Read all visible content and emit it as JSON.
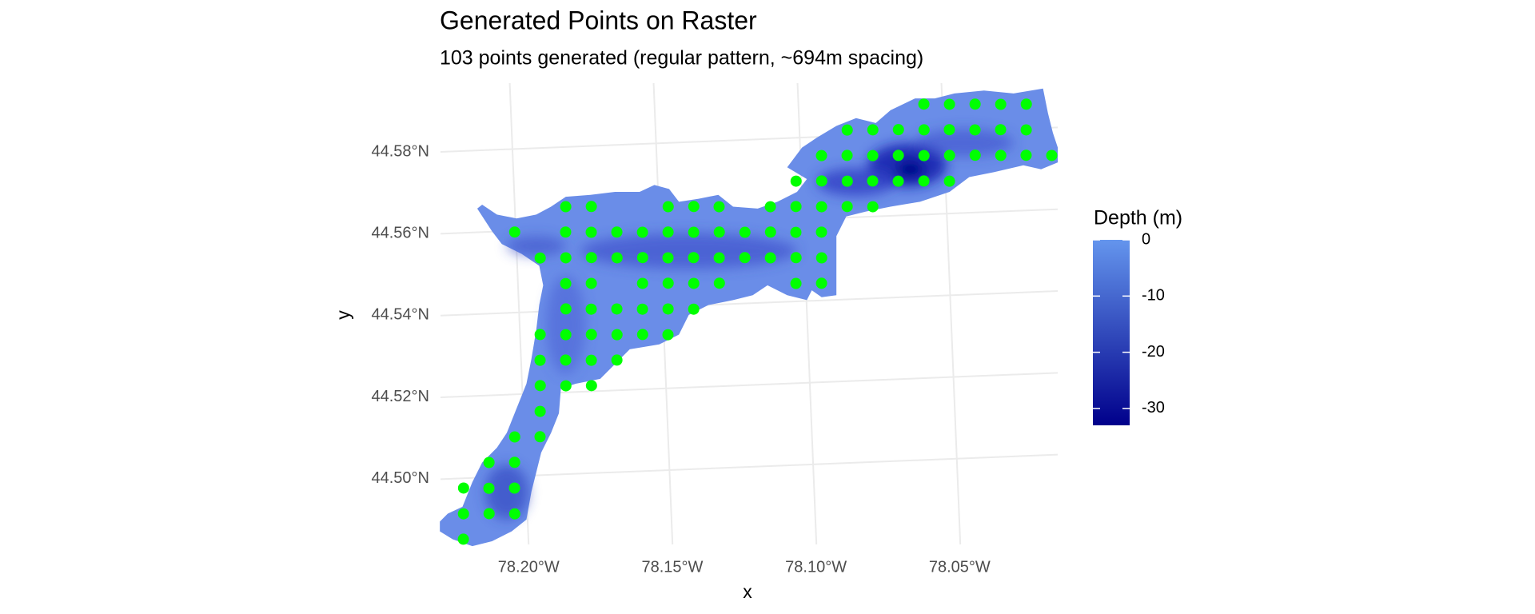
{
  "chart_data": {
    "type": "scatter",
    "title": "Generated Points on Raster",
    "subtitle": "103 points generated (regular pattern, ~694m spacing)",
    "x_label": "x",
    "y_label": "y",
    "color": "#00ff00",
    "grid": true,
    "xlim": [
      -78.225,
      -78.015
    ],
    "ylim": [
      44.483,
      44.597
    ],
    "xticks": [
      {
        "value": -78.2,
        "label": "78.20°W"
      },
      {
        "value": -78.15,
        "label": "78.15°W"
      },
      {
        "value": -78.1,
        "label": "78.10°W"
      },
      {
        "value": -78.05,
        "label": "78.05°W"
      }
    ],
    "yticks": [
      {
        "value": 44.5,
        "label": "44.50°N"
      },
      {
        "value": 44.52,
        "label": "44.52°N"
      },
      {
        "value": 44.54,
        "label": "44.54°N"
      },
      {
        "value": 44.56,
        "label": "44.56°N"
      },
      {
        "value": 44.58,
        "label": "44.58°N"
      }
    ],
    "x": [
      -78.0564,
      -78.0475,
      -78.0386,
      -78.0297,
      -78.0208,
      -78.0834,
      -78.0745,
      -78.0656,
      -78.0567,
      -78.0479,
      -78.039,
      -78.0301,
      -78.0212,
      -78.0927,
      -78.0838,
      -78.0749,
      -78.066,
      -78.0571,
      -78.0482,
      -78.0393,
      -78.0304,
      -78.0216,
      -78.0127,
      -78.1019,
      -78.093,
      -78.0841,
      -78.0753,
      -78.0664,
      -78.0575,
      -78.0486,
      -78.1823,
      -78.1734,
      -78.1467,
      -78.1378,
      -78.129,
      -78.1112,
      -78.1023,
      -78.0934,
      -78.0845,
      -78.0756,
      -78.2004,
      -78.1827,
      -78.1738,
      -78.1649,
      -78.156,
      -78.1471,
      -78.1382,
      -78.1293,
      -78.1204,
      -78.1115,
      -78.1027,
      -78.0938,
      -78.1919,
      -78.183,
      -78.1741,
      -78.1652,
      -78.1563,
      -78.1475,
      -78.1386,
      -78.1297,
      -78.1208,
      -78.1119,
      -78.103,
      -78.0941,
      -78.1834,
      -78.1745,
      -78.1567,
      -78.1478,
      -78.1389,
      -78.13,
      -78.1034,
      -78.0945,
      -78.1837,
      -78.1749,
      -78.166,
      -78.1571,
      -78.1482,
      -78.1393,
      -78.193,
      -78.1841,
      -78.1752,
      -78.1663,
      -78.1574,
      -78.1486,
      -78.1934,
      -78.1845,
      -78.1756,
      -78.1667,
      -78.1937,
      -78.1848,
      -78.1759,
      -78.1941,
      -78.2033,
      -78.1945,
      -78.2126,
      -78.2037,
      -78.2218,
      -78.213,
      -78.2041,
      -78.2222,
      -78.2133,
      -78.2044,
      -78.2226
    ],
    "values": [
      44.587,
      44.5867,
      44.5865,
      44.5862,
      44.586,
      44.5814,
      44.5812,
      44.581,
      44.5807,
      44.5805,
      44.5802,
      44.58,
      44.5797,
      44.5754,
      44.5752,
      44.5749,
      44.5747,
      44.5744,
      44.5742,
      44.574,
      44.5737,
      44.5735,
      44.5732,
      44.5694,
      44.5692,
      44.5689,
      44.5687,
      44.5684,
      44.5682,
      44.5679,
      44.5654,
      44.5652,
      44.5644,
      44.5642,
      44.5639,
      44.5634,
      44.5632,
      44.5629,
      44.5627,
      44.5624,
      44.5597,
      44.5592,
      44.5589,
      44.5587,
      44.5584,
      44.5582,
      44.5579,
      44.5577,
      44.5574,
      44.5572,
      44.5569,
      44.5567,
      44.5531,
      44.5529,
      44.5527,
      44.5524,
      44.5522,
      44.5519,
      44.5517,
      44.5514,
      44.5512,
      44.5509,
      44.5507,
      44.5504,
      44.5466,
      44.5464,
      44.5459,
      44.5457,
      44.5454,
      44.5452,
      44.5444,
      44.5442,
      44.5404,
      44.5401,
      44.5399,
      44.5396,
      44.5394,
      44.5391,
      44.5344,
      44.5341,
      44.5339,
      44.5336,
      44.5334,
      44.5331,
      44.5281,
      44.5279,
      44.5276,
      44.5274,
      44.5219,
      44.5216,
      44.5214,
      44.5156,
      44.5096,
      44.5094,
      44.5036,
      44.5034,
      44.4976,
      44.4973,
      44.4971,
      44.4913,
      44.4911,
      44.4908,
      44.4851
    ],
    "fill_scale": {
      "title": "Depth (m)",
      "limits": [
        -33,
        0
      ],
      "ticks": [
        0,
        -10,
        -20,
        -30
      ],
      "colors": [
        "#00008b",
        "#6495ed"
      ]
    }
  }
}
